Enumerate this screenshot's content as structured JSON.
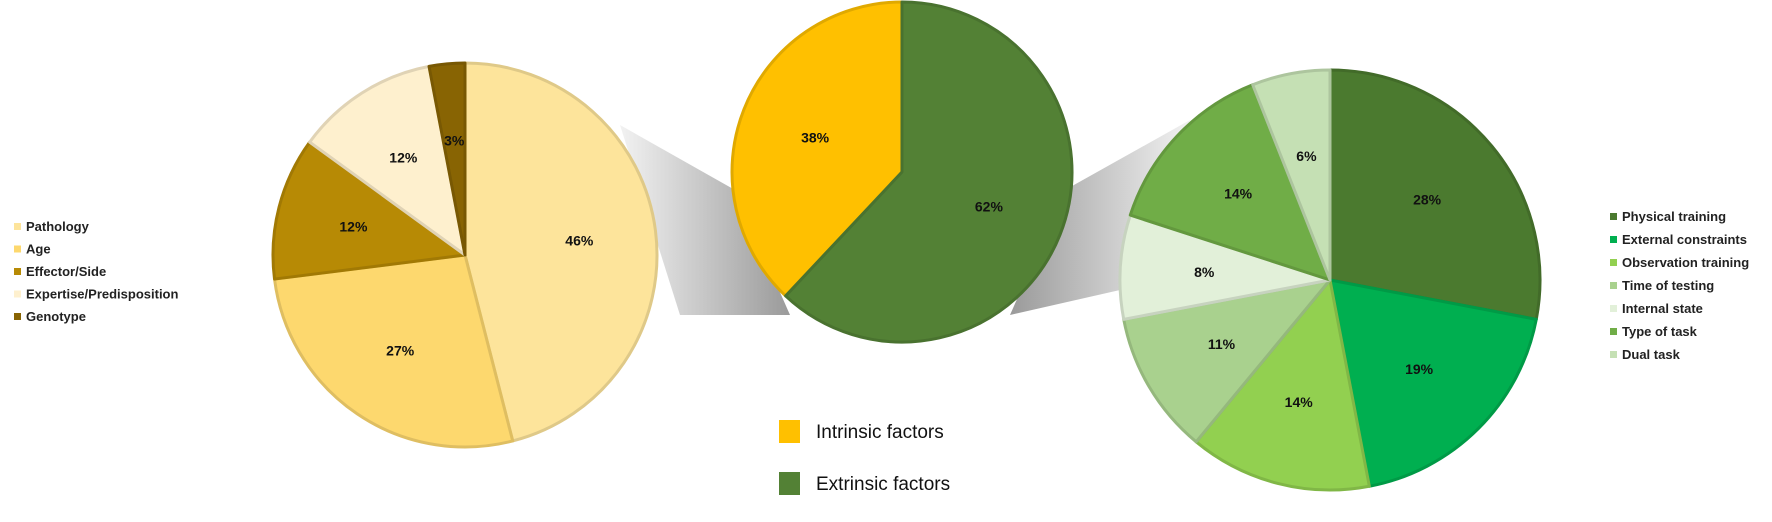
{
  "chart_data": [
    {
      "type": "pie",
      "name": "intrinsic-breakdown",
      "categories": [
        "Pathology",
        "Age",
        "Effector/Side",
        "Expertise/Predisposition",
        "Genotype"
      ],
      "values": [
        46,
        27,
        12,
        12,
        3
      ],
      "labels": [
        "46%",
        "27%",
        "12%",
        "12%",
        "3%"
      ],
      "colors": [
        "#FDE49B",
        "#FDD86E",
        "#B78A05",
        "#FEF0CE",
        "#886403"
      ],
      "legend_position": "left"
    },
    {
      "type": "pie",
      "name": "overall",
      "categories": [
        "Intrinsic factors",
        "Extrinsic factors"
      ],
      "values": [
        38,
        62
      ],
      "labels": [
        "38%",
        "62%"
      ],
      "colors": [
        "#FFC000",
        "#538135"
      ],
      "legend_position": "bottom"
    },
    {
      "type": "pie",
      "name": "extrinsic-breakdown",
      "categories": [
        "Physical training",
        "External constraints",
        "Observation training",
        "Time of testing",
        "Internal state",
        "Type of task",
        "Dual task"
      ],
      "values": [
        28,
        19,
        14,
        11,
        8,
        14,
        6
      ],
      "labels": [
        "28%",
        "19%",
        "14%",
        "11%",
        "8%",
        "14%",
        "6%"
      ],
      "colors": [
        "#4B7A2F",
        "#00AF50",
        "#92D050",
        "#A9D18E",
        "#E2F0D9",
        "#70AD47",
        "#C5E0B4"
      ],
      "legend_position": "right"
    }
  ]
}
